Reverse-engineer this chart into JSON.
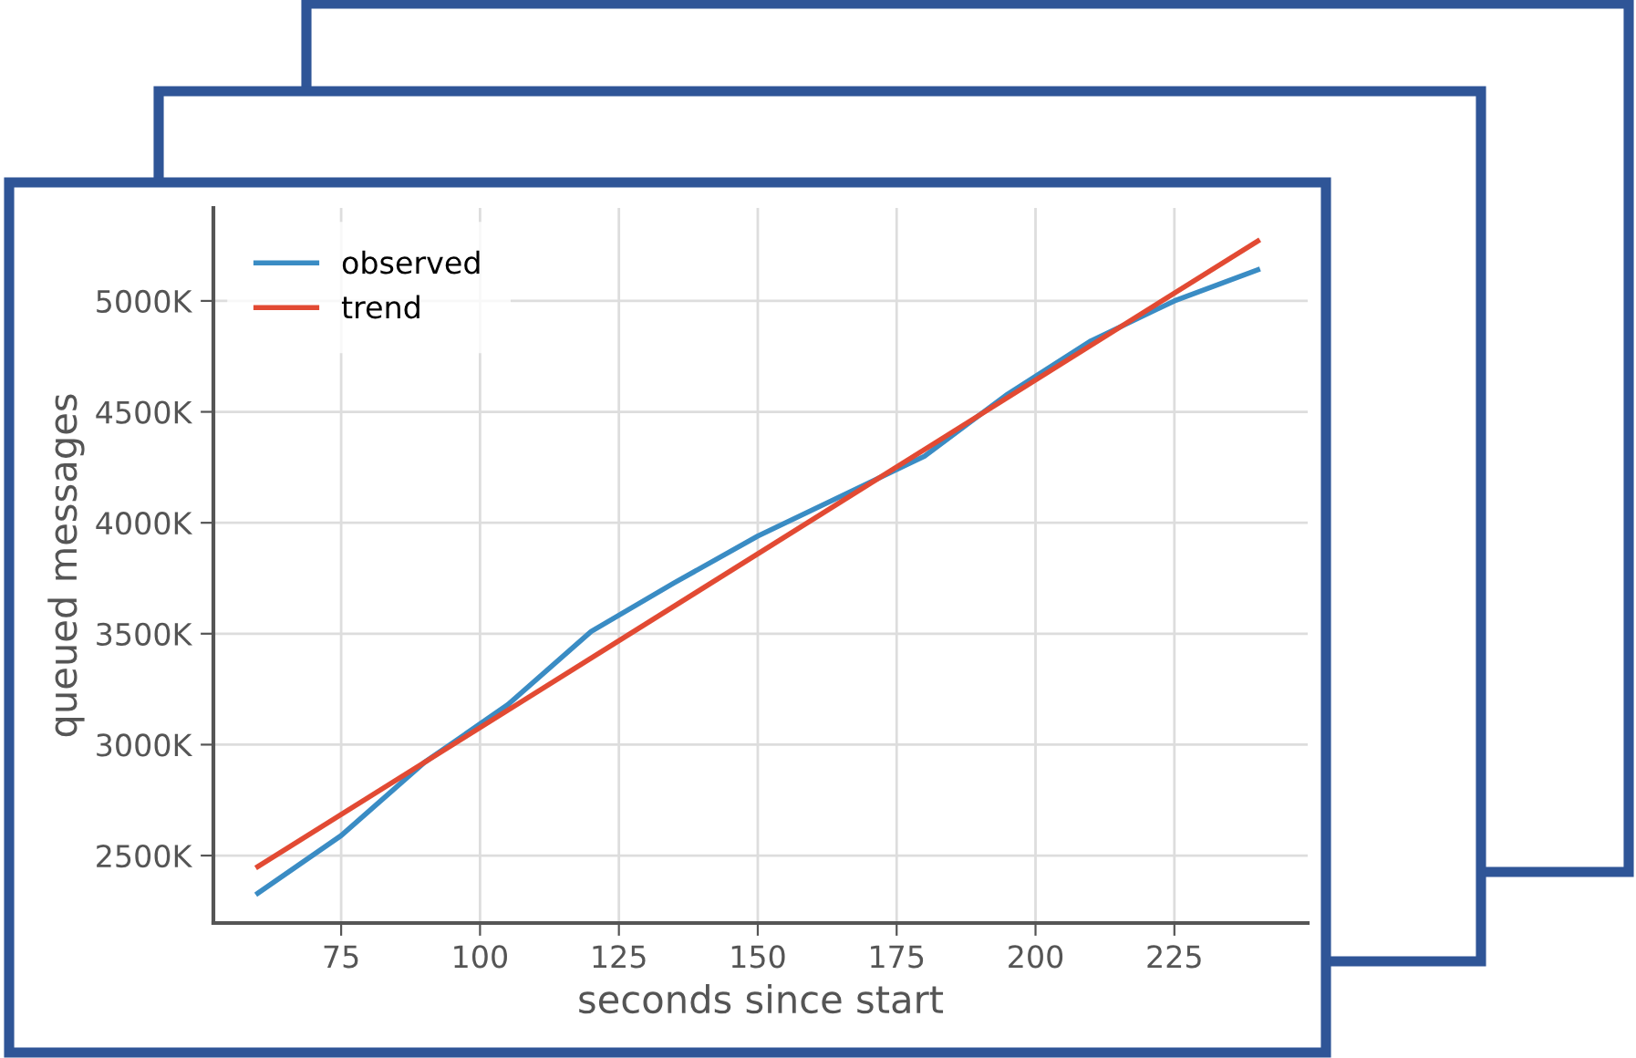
{
  "chart_data": {
    "type": "line",
    "xlabel": "seconds since start",
    "ylabel": "queued messages",
    "xlim": [
      52,
      249
    ],
    "xticks": [
      75,
      100,
      125,
      150,
      175,
      200,
      225
    ],
    "ylim": [
      2196,
      5419
    ],
    "yticks": [
      {
        "value": 2500,
        "label": "2500K"
      },
      {
        "value": 3000,
        "label": "3000K"
      },
      {
        "value": 3500,
        "label": "3500K"
      },
      {
        "value": 4000,
        "label": "4000K"
      },
      {
        "value": 4500,
        "label": "4500K"
      },
      {
        "value": 5000,
        "label": "5000K"
      }
    ],
    "series": [
      {
        "name": "observed",
        "color": "#3a8cc4",
        "x": [
          60,
          75,
          90,
          105,
          120,
          135,
          150,
          165,
          180,
          195,
          210,
          225,
          240
        ],
        "values": [
          2330,
          2590,
          2920,
          3180,
          3510,
          3730,
          3940,
          4120,
          4300,
          4580,
          4820,
          5000,
          5140
        ]
      },
      {
        "name": "trend",
        "color": "#e24a33",
        "x": [
          60,
          240
        ],
        "values": [
          2450,
          5270
        ]
      }
    ],
    "grid": true,
    "legend": "top left",
    "marker": "none",
    "line_style": "solid"
  }
}
